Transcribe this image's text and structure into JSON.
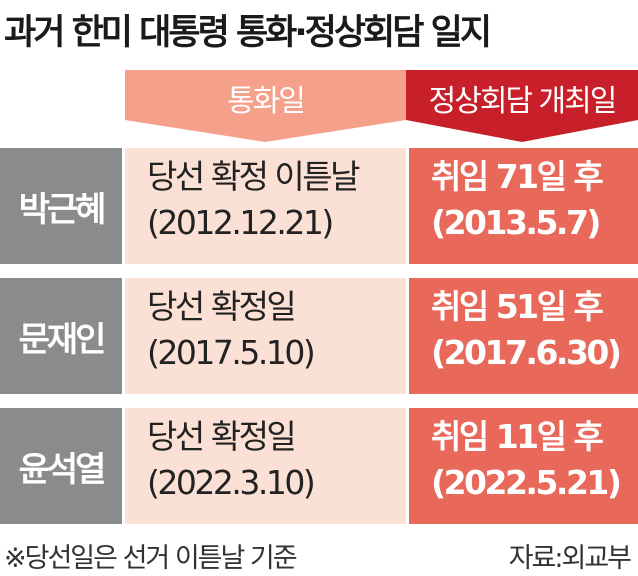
{
  "title": "과거 한미 대통령 통화·정상회담 일지",
  "headers": {
    "call": "통화일",
    "summit": "정상회담 개최일"
  },
  "colors": {
    "name_bg": "#8a8b8d",
    "call_header": "#f4a08a",
    "call_cell": "#fbe0d6",
    "summit_header": "#c8202a",
    "summit_cell": "#e8685a"
  },
  "rows": [
    {
      "name": "박근혜",
      "call_desc": "당선 확정 이튿날",
      "call_date": "(2012.12.21)",
      "summit_desc": "취임 71일 후",
      "summit_date": "(2013.5.7)"
    },
    {
      "name": "문재인",
      "call_desc": "당선 확정일",
      "call_date": "(2017.5.10)",
      "summit_desc": "취임 51일 후",
      "summit_date": "(2017.6.30)"
    },
    {
      "name": "윤석열",
      "call_desc": "당선 확정일",
      "call_date": "(2022.3.10)",
      "summit_desc": "취임 11일 후",
      "summit_date": "(2022.5.21)"
    }
  ],
  "footnote": "※당선일은 선거 이튿날 기준",
  "source": "자료:외교부"
}
